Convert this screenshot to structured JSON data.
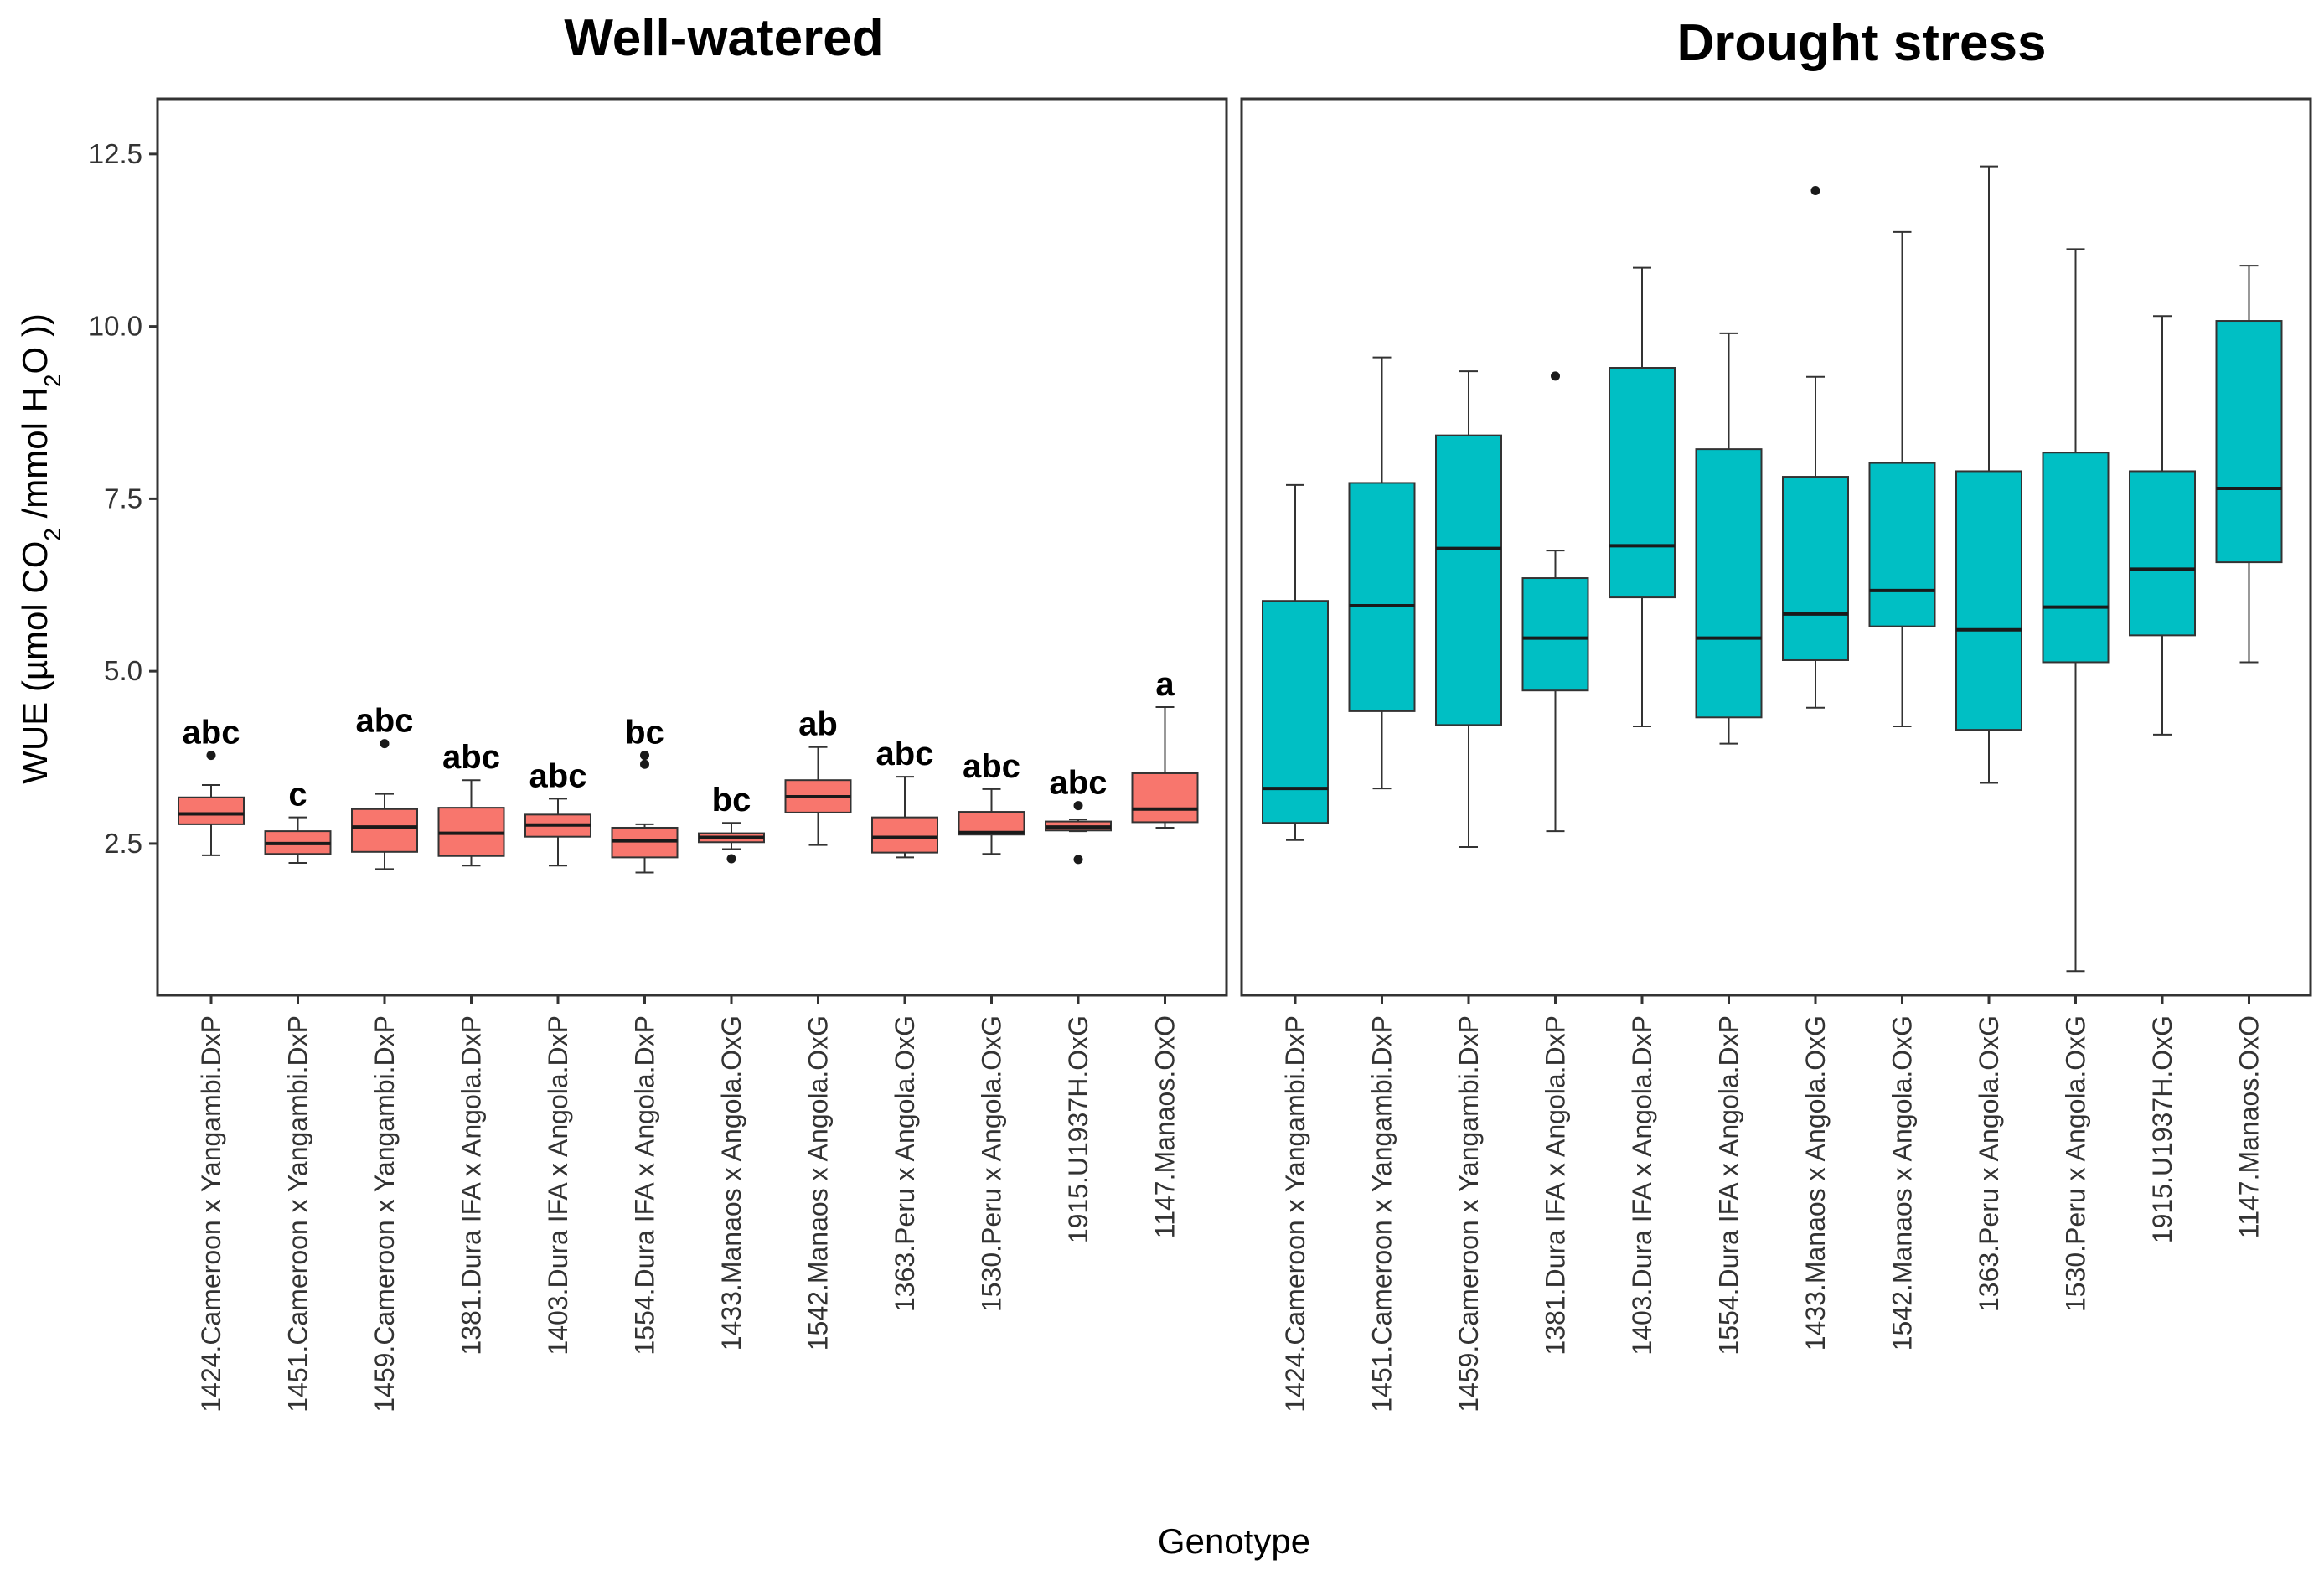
{
  "chart_data": {
    "type": "boxplot",
    "xlabel": "Genotype",
    "ylabel_parts": {
      "prefix": "WUE (µmol CO",
      "sub1": "2",
      "mid": " /mmol H",
      "sub2": "2",
      "suffix": "O ))"
    },
    "yticks": [
      "2.5",
      "5.0",
      "7.5",
      "10.0",
      "12.5"
    ],
    "ylim": [
      0.3,
      13.3
    ],
    "categories": [
      "1424.Cameroon x Yangambi.DxP",
      "1451.Cameroon x Yangambi.DxP",
      "1459.Cameroon x Yangambi.DxP",
      "1381.Dura IFA x Angola.DxP",
      "1403.Dura IFA x Angola.DxP",
      "1554.Dura IFA x Angola.DxP",
      "1433.Manaos x Angola.OxG",
      "1542.Manaos x Angola.OxG",
      "1363.Peru x Angola.OxG",
      "1530.Peru x Angola.OxG",
      "1915.U1937H.OxG",
      "1147.Manaos.OxO"
    ],
    "panels": [
      {
        "title": "Well-watered",
        "color": "#F8766D",
        "boxes": [
          {
            "min": 2.33,
            "q1": 2.78,
            "median": 2.93,
            "q3": 3.17,
            "max": 3.35,
            "outliers": [
              3.78
            ],
            "label": "abc"
          },
          {
            "min": 2.22,
            "q1": 2.35,
            "median": 2.5,
            "q3": 2.68,
            "max": 2.88,
            "outliers": [],
            "label": "c"
          },
          {
            "min": 2.13,
            "q1": 2.38,
            "median": 2.74,
            "q3": 3.0,
            "max": 3.22,
            "outliers": [
              3.95
            ],
            "label": "abc"
          },
          {
            "min": 2.18,
            "q1": 2.32,
            "median": 2.65,
            "q3": 3.02,
            "max": 3.42,
            "outliers": [],
            "label": "abc"
          },
          {
            "min": 2.18,
            "q1": 2.6,
            "median": 2.77,
            "q3": 2.92,
            "max": 3.15,
            "outliers": [],
            "label": "abc"
          },
          {
            "min": 2.08,
            "q1": 2.3,
            "median": 2.54,
            "q3": 2.73,
            "max": 2.78,
            "outliers": [
              3.65,
              3.78
            ],
            "label": "bc"
          },
          {
            "min": 2.42,
            "q1": 2.52,
            "median": 2.59,
            "q3": 2.65,
            "max": 2.8,
            "outliers": [
              2.28
            ],
            "label": "bc"
          },
          {
            "min": 2.48,
            "q1": 2.95,
            "median": 3.18,
            "q3": 3.42,
            "max": 3.9,
            "outliers": [],
            "label": "ab"
          },
          {
            "min": 2.3,
            "q1": 2.37,
            "median": 2.59,
            "q3": 2.88,
            "max": 3.47,
            "outliers": [],
            "label": "abc"
          },
          {
            "min": 2.35,
            "q1": 2.63,
            "median": 2.66,
            "q3": 2.96,
            "max": 3.29,
            "outliers": [],
            "label": "abc"
          },
          {
            "min": 2.68,
            "q1": 2.69,
            "median": 2.74,
            "q3": 2.82,
            "max": 2.85,
            "outliers": [
              3.05,
              2.27
            ],
            "label": "abc"
          },
          {
            "min": 2.73,
            "q1": 2.81,
            "median": 3.0,
            "q3": 3.52,
            "max": 4.48,
            "outliers": [],
            "label": "a"
          }
        ]
      },
      {
        "title": "Drought stress",
        "color": "#00BFC4",
        "boxes": [
          {
            "min": 2.55,
            "q1": 2.8,
            "median": 3.3,
            "q3": 6.02,
            "max": 7.7,
            "outliers": []
          },
          {
            "min": 3.3,
            "q1": 4.42,
            "median": 5.95,
            "q3": 7.73,
            "max": 9.55,
            "outliers": []
          },
          {
            "min": 2.45,
            "q1": 4.22,
            "median": 6.78,
            "q3": 8.42,
            "max": 9.35,
            "outliers": []
          },
          {
            "min": 2.68,
            "q1": 4.72,
            "median": 5.48,
            "q3": 6.35,
            "max": 6.75,
            "outliers": [
              9.28
            ]
          },
          {
            "min": 4.2,
            "q1": 6.07,
            "median": 6.82,
            "q3": 9.4,
            "max": 10.85,
            "outliers": []
          },
          {
            "min": 3.95,
            "q1": 4.33,
            "median": 5.48,
            "q3": 8.22,
            "max": 9.9,
            "outliers": []
          },
          {
            "min": 4.47,
            "q1": 5.16,
            "median": 5.83,
            "q3": 7.82,
            "max": 9.27,
            "outliers": [
              11.97
            ]
          },
          {
            "min": 4.2,
            "q1": 5.65,
            "median": 6.17,
            "q3": 8.02,
            "max": 11.37,
            "outliers": []
          },
          {
            "min": 3.38,
            "q1": 4.15,
            "median": 5.6,
            "q3": 7.9,
            "max": 12.32,
            "outliers": []
          },
          {
            "min": 0.65,
            "q1": 5.13,
            "median": 5.93,
            "q3": 8.17,
            "max": 11.12,
            "outliers": []
          },
          {
            "min": 4.08,
            "q1": 5.52,
            "median": 6.48,
            "q3": 7.9,
            "max": 10.15,
            "outliers": []
          },
          {
            "min": 5.13,
            "q1": 6.58,
            "median": 7.65,
            "q3": 10.08,
            "max": 10.88,
            "outliers": []
          }
        ]
      }
    ]
  }
}
